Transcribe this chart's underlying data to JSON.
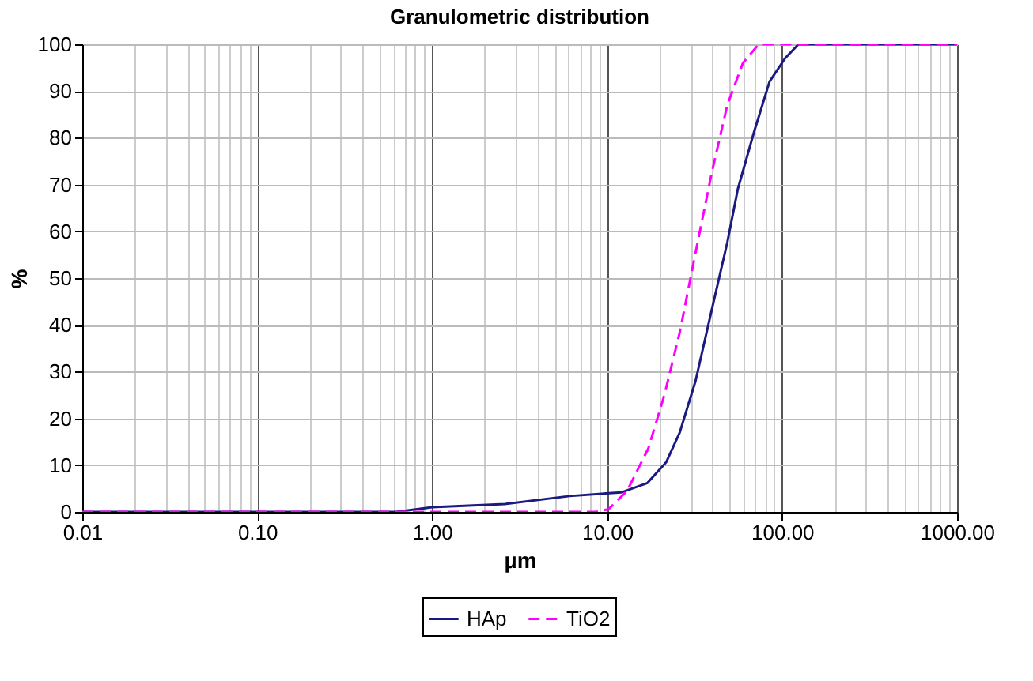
{
  "chart_data": {
    "type": "line",
    "title": "Granulometric distribution",
    "xlabel": "µm",
    "ylabel": "%",
    "log": "x",
    "xlim": [
      0.01,
      1000
    ],
    "ylim": [
      0,
      100
    ],
    "xticks": [
      {
        "value": 0.01,
        "label": "0.01"
      },
      {
        "value": 0.02,
        "label": null
      },
      {
        "value": 0.03,
        "label": null
      },
      {
        "value": 0.04,
        "label": null
      },
      {
        "value": 0.05,
        "label": null
      },
      {
        "value": 0.06,
        "label": null
      },
      {
        "value": 0.07,
        "label": null
      },
      {
        "value": 0.08,
        "label": null
      },
      {
        "value": 0.09,
        "label": null
      },
      {
        "value": 0.1,
        "label": "0.10"
      },
      {
        "value": 0.2,
        "label": null
      },
      {
        "value": 0.3,
        "label": null
      },
      {
        "value": 0.4,
        "label": null
      },
      {
        "value": 0.5,
        "label": null
      },
      {
        "value": 0.6,
        "label": null
      },
      {
        "value": 0.7,
        "label": null
      },
      {
        "value": 0.8,
        "label": null
      },
      {
        "value": 0.9,
        "label": null
      },
      {
        "value": 1,
        "label": "1.00"
      },
      {
        "value": 2,
        "label": null
      },
      {
        "value": 3,
        "label": null
      },
      {
        "value": 4,
        "label": null
      },
      {
        "value": 5,
        "label": null
      },
      {
        "value": 6,
        "label": null
      },
      {
        "value": 7,
        "label": null
      },
      {
        "value": 8,
        "label": null
      },
      {
        "value": 9,
        "label": null
      },
      {
        "value": 10,
        "label": "10.00"
      },
      {
        "value": 20,
        "label": null
      },
      {
        "value": 30,
        "label": null
      },
      {
        "value": 40,
        "label": null
      },
      {
        "value": 50,
        "label": null
      },
      {
        "value": 60,
        "label": null
      },
      {
        "value": 70,
        "label": null
      },
      {
        "value": 80,
        "label": null
      },
      {
        "value": 90,
        "label": null
      },
      {
        "value": 100,
        "label": "100.00"
      },
      {
        "value": 200,
        "label": null
      },
      {
        "value": 300,
        "label": null
      },
      {
        "value": 400,
        "label": null
      },
      {
        "value": 500,
        "label": null
      },
      {
        "value": 600,
        "label": null
      },
      {
        "value": 700,
        "label": null
      },
      {
        "value": 800,
        "label": null
      },
      {
        "value": 900,
        "label": null
      },
      {
        "value": 1000,
        "label": "1000.00"
      }
    ],
    "yticks": [
      0,
      10,
      20,
      30,
      40,
      50,
      60,
      70,
      80,
      90,
      100
    ],
    "grid": true,
    "legend": "bottom",
    "series": [
      {
        "name": "HAp",
        "color": "#1a1a80",
        "line_style": "solid",
        "x": [
          0.01,
          0.62,
          1.0,
          2.6,
          6.1,
          12.1,
          17,
          21.8,
          26,
          32,
          39.5,
          48.6,
          55.8,
          68.8,
          84.7,
          104,
          124,
          1000
        ],
        "values": [
          0,
          0,
          1,
          1.7,
          3.4,
          4.2,
          6.2,
          10.7,
          17,
          28,
          43,
          57.6,
          69,
          81,
          92,
          97,
          100,
          100
        ]
      },
      {
        "name": "TiO2",
        "color": "#ff00ff",
        "line_style": "dashed",
        "x": [
          0.01,
          8.6,
          10.2,
          13,
          17.2,
          21.2,
          26,
          32,
          39.5,
          48.6,
          59.7,
          73.5,
          1000
        ],
        "values": [
          0,
          0,
          0.6,
          4.5,
          13.6,
          24.9,
          38.4,
          55.4,
          72.3,
          87,
          96,
          100,
          100
        ]
      }
    ]
  }
}
